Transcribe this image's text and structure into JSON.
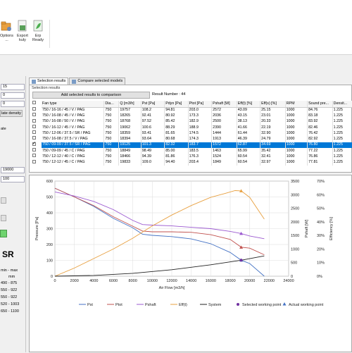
{
  "ribbon": {
    "options_label": "Options",
    "options_sub": "...",
    "export_label": "Export",
    "export_sub": "kuly",
    "erp_label": "Erp",
    "erp_sub": "Ready"
  },
  "left_panel": {
    "field1": "15",
    "field2": "0",
    "field3": "0",
    "density_btn": "late density",
    "label_ate": "ate",
    "airflow": "19000",
    "pressure": "100",
    "series_title": "SR",
    "range_title": "min - max",
    "range_unit": "mm",
    "ranges": [
      "490 - 875",
      "550 - 922",
      "550 - 922",
      "520 - 1003",
      "650 - 1100"
    ]
  },
  "tabs": [
    {
      "label": "Selection results"
    },
    {
      "label": "Compare selected models"
    }
  ],
  "results": {
    "title": "Selection results",
    "add_button": "Add selected results to comparison",
    "result_count": "Result Number : 44",
    "columns": [
      "Fan type",
      "Dia...",
      "Q [m3/h]",
      "Pst [Pa]",
      "Pdyn [Pa]",
      "Ptot [Pa]",
      "Pshaft [W]",
      "Eff(t) [%]",
      "Eff(s) [%]",
      "RPM",
      "Sound pre...",
      "Densit..."
    ],
    "rows": [
      [
        "750 / 16-16 / 45 / V / PAG",
        "750",
        "19757",
        "108.2",
        "94.81",
        "203.0",
        "2572",
        "43.09",
        "25.15",
        "1000",
        "84.76",
        "1.225"
      ],
      [
        "750 / 16-08 / 45 / V / PAG",
        "750",
        "18265",
        "92.41",
        "80.92",
        "173.3",
        "2036",
        "43.15",
        "23.01",
        "1000",
        "83.18",
        "1.225"
      ],
      [
        "750 / 16-08 / 50 / V / PAG",
        "750",
        "18768",
        "97.52",
        "85.42",
        "182.9",
        "2500",
        "38.13",
        "20.33",
        "1000",
        "83.92",
        "1.225"
      ],
      [
        "750 / 16-12 / 45 / V / PAG",
        "750",
        "19062",
        "100.6",
        "88.29",
        "188.9",
        "2390",
        "41.66",
        "22.19",
        "1000",
        "82.46",
        "1.225"
      ],
      [
        "750 / 12-06 / 37.5 / SR / PAG",
        "750",
        "18359",
        "93.41",
        "81.65",
        "174.5",
        "1444",
        "61.44",
        "32.90",
        "1000",
        "76.42",
        "1.225"
      ],
      [
        "750 / 16-08 / 37.5 / V / PAG",
        "750",
        "18394",
        "93.64",
        "80.68",
        "174.3",
        "1913",
        "46.39",
        "24.79",
        "1000",
        "82.92",
        "1.225"
      ],
      [
        "750 / 09-09 / 37.5 / SR / PAG",
        "750",
        "19125",
        "101.3",
        "82.32",
        "183.7",
        "1572",
        "62.87",
        "34.69",
        "1000",
        "76.80",
        "1.225"
      ],
      [
        "750 / 09-09 / 45 / C / PAG",
        "750",
        "18849",
        "98.49",
        "85.00",
        "183.5",
        "1463",
        "65.99",
        "35.42",
        "1000",
        "77.22",
        "1.225"
      ],
      [
        "750 / 12-12 / 40 / C / PAG",
        "750",
        "18466",
        "94.39",
        "81.86",
        "176.3",
        "1524",
        "60.54",
        "32.41",
        "1000",
        "76.86",
        "1.225"
      ],
      [
        "750 / 12-12 / 45 / C / PAG",
        "750",
        "19833",
        "109.0",
        "94.40",
        "203.4",
        "1849",
        "60.54",
        "32.97",
        "1000",
        "77.81",
        "1.225"
      ]
    ],
    "selected_index": 6,
    "checked_index": 6
  },
  "chart_data": {
    "type": "line",
    "xlabel": "Air Flow [m3/h]",
    "ylabel_left": "Pressure [Pa]",
    "ylabel_right1": "Pshaft [W]",
    "ylabel_right2": "Efficiency [%]",
    "xlim": [
      0,
      24000
    ],
    "ylim_left": [
      0,
      600
    ],
    "ylim_right1": [
      0,
      3500
    ],
    "ylim_right2": [
      0,
      70
    ],
    "x_ticks": [
      "0",
      "2000",
      "4000",
      "6000",
      "8000",
      "10000",
      "12000",
      "14000",
      "16000",
      "18000",
      "20000",
      "22000",
      "24000"
    ],
    "y_ticks_left": [
      "0",
      "100",
      "200",
      "300",
      "400",
      "500",
      "600"
    ],
    "y_ticks_right1": [
      "0",
      "500",
      "1000",
      "1500",
      "2000",
      "2500",
      "3000",
      "3500"
    ],
    "y_ticks_right2": [
      "0%",
      "10%",
      "20%",
      "30%",
      "40%",
      "50%",
      "60%",
      "70%"
    ],
    "grid": true,
    "legend_placement": "bottom",
    "series": [
      {
        "name": "Pst",
        "color": "#4472c4",
        "axis": "left",
        "points": [
          [
            0,
            555
          ],
          [
            2000,
            500
          ],
          [
            4000,
            440
          ],
          [
            6000,
            365
          ],
          [
            8000,
            305
          ],
          [
            9000,
            265
          ],
          [
            10000,
            258
          ],
          [
            12000,
            250
          ],
          [
            14000,
            235
          ],
          [
            16000,
            205
          ],
          [
            18000,
            150
          ],
          [
            19125,
            101
          ],
          [
            20000,
            80
          ],
          [
            21500,
            0
          ]
        ]
      },
      {
        "name": "Ptot",
        "color": "#c0504d",
        "axis": "left",
        "points": [
          [
            0,
            555
          ],
          [
            2000,
            500
          ],
          [
            4000,
            445
          ],
          [
            6000,
            375
          ],
          [
            8000,
            315
          ],
          [
            9000,
            285
          ],
          [
            10000,
            280
          ],
          [
            12000,
            280
          ],
          [
            14000,
            277
          ],
          [
            16000,
            262
          ],
          [
            18000,
            232
          ],
          [
            19125,
            183
          ],
          [
            20000,
            177
          ],
          [
            21500,
            135
          ]
        ]
      },
      {
        "name": "Pshaft",
        "color": "#9b59d0",
        "axis": "right1",
        "points": [
          [
            0,
            3100
          ],
          [
            2000,
            2950
          ],
          [
            4000,
            2750
          ],
          [
            6000,
            2450
          ],
          [
            8000,
            2050
          ],
          [
            9000,
            1900
          ],
          [
            10000,
            1880
          ],
          [
            12000,
            1850
          ],
          [
            14000,
            1800
          ],
          [
            16000,
            1750
          ],
          [
            18000,
            1650
          ],
          [
            19125,
            1572
          ],
          [
            20000,
            1480
          ],
          [
            21500,
            1380
          ]
        ]
      },
      {
        "name": "Eff(t)",
        "color": "#e8a040",
        "axis": "right2",
        "points": [
          [
            0,
            0
          ],
          [
            2000,
            6
          ],
          [
            4000,
            13
          ],
          [
            6000,
            20
          ],
          [
            8000,
            28
          ],
          [
            10000,
            37
          ],
          [
            12000,
            45
          ],
          [
            14000,
            52
          ],
          [
            16000,
            58
          ],
          [
            17500,
            61
          ],
          [
            18500,
            63
          ],
          [
            19125,
            62.8
          ],
          [
            20000,
            58
          ],
          [
            21500,
            42
          ]
        ]
      },
      {
        "name": "System",
        "color": "#222222",
        "axis": "left",
        "points": [
          [
            0,
            0
          ],
          [
            4000,
            5
          ],
          [
            8000,
            18
          ],
          [
            12000,
            41
          ],
          [
            16000,
            72
          ],
          [
            19125,
            101
          ],
          [
            21500,
            128
          ]
        ]
      }
    ],
    "markers": [
      {
        "name": "Selected working point",
        "color": "#7030a0",
        "shape": "circle"
      },
      {
        "name": "Actual working point",
        "color": "#4472c4",
        "shape": "triangle"
      }
    ],
    "legend": [
      "Pst",
      "Ptot",
      "Pshaft",
      "Eff(t)",
      "System",
      "Selected working point",
      "Actual working point"
    ]
  }
}
